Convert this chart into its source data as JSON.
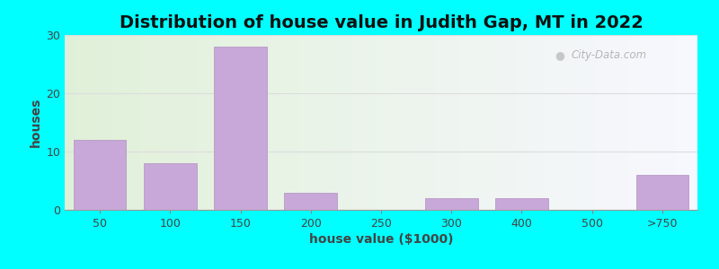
{
  "title": "Distribution of house value in Judith Gap, MT in 2022",
  "xlabel": "house value ($1000)",
  "ylabel": "houses",
  "categories": [
    "50",
    "100",
    "150",
    "200",
    "250",
    "300",
    "400",
    "500",
    ">750"
  ],
  "values": [
    12,
    8,
    28,
    3,
    0,
    2,
    2,
    0,
    6
  ],
  "bar_color": "#c8a8d8",
  "bar_edge_color": "#b090c0",
  "ylim": [
    0,
    30
  ],
  "yticks": [
    0,
    10,
    20,
    30
  ],
  "outer_bg": "#00ffff",
  "title_fontsize": 14,
  "axis_label_fontsize": 10,
  "tick_fontsize": 9,
  "grid_color": "#dddddd",
  "watermark": "City-Data.com"
}
